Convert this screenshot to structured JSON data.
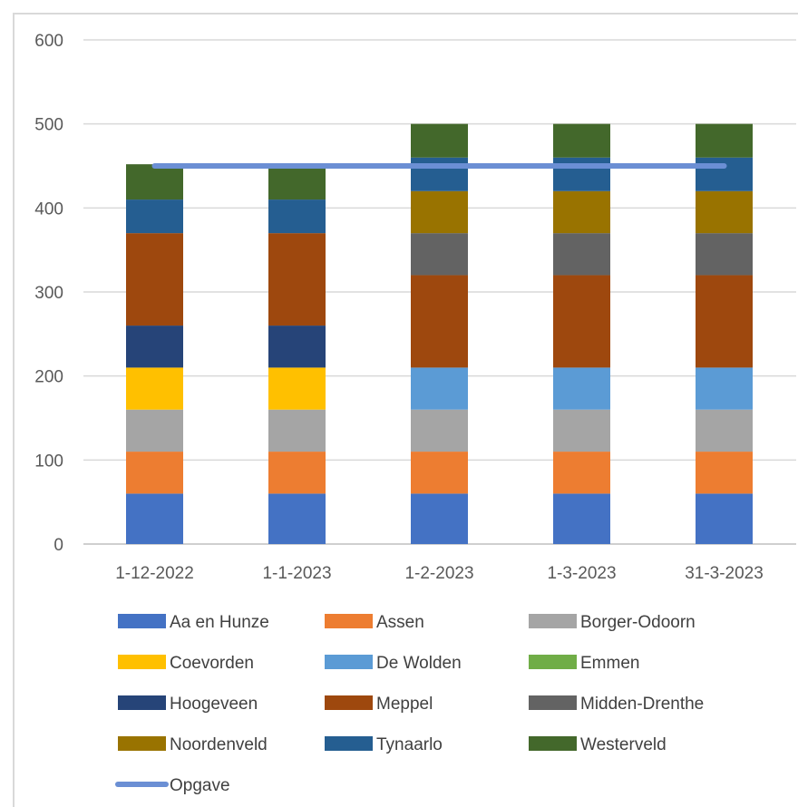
{
  "chart_data": {
    "type": "bar",
    "stacked": true,
    "title": "",
    "xlabel": "",
    "ylabel": "",
    "ylim": [
      0,
      600
    ],
    "yticks": [
      0,
      100,
      200,
      300,
      400,
      500,
      600
    ],
    "grid": true,
    "legend_position": "bottom",
    "categories": [
      "1-12-2022",
      "1-1-2023",
      "1-2-2023",
      "1-3-2023",
      "31-3-2023"
    ],
    "series": [
      {
        "name": "Aa en Hunze",
        "color": "#4472c4",
        "values": [
          60,
          60,
          60,
          60,
          60
        ]
      },
      {
        "name": "Assen",
        "color": "#ed7d31",
        "values": [
          50,
          50,
          50,
          50,
          50
        ]
      },
      {
        "name": "Borger-Odoorn",
        "color": "#a5a5a5",
        "values": [
          50,
          50,
          50,
          50,
          50
        ]
      },
      {
        "name": "Coevorden",
        "color": "#ffc000",
        "values": [
          50,
          50,
          0,
          0,
          0
        ]
      },
      {
        "name": "De Wolden",
        "color": "#5b9bd5",
        "values": [
          0,
          0,
          50,
          50,
          50
        ]
      },
      {
        "name": "Emmen",
        "color": "#70ad47",
        "values": [
          0,
          0,
          0,
          0,
          0
        ]
      },
      {
        "name": "Hoogeveen",
        "color": "#264478",
        "values": [
          50,
          50,
          0,
          0,
          0
        ]
      },
      {
        "name": "Meppel",
        "color": "#9e480e",
        "values": [
          110,
          110,
          110,
          110,
          110
        ]
      },
      {
        "name": "Midden-Drenthe",
        "color": "#636363",
        "values": [
          0,
          0,
          50,
          50,
          50
        ]
      },
      {
        "name": "Noordenveld",
        "color": "#997300",
        "values": [
          0,
          0,
          50,
          50,
          50
        ]
      },
      {
        "name": "Tynaarlo",
        "color": "#255e91",
        "values": [
          40,
          40,
          40,
          40,
          40
        ]
      },
      {
        "name": "Westerveld",
        "color": "#43682b",
        "values": [
          42,
          40,
          40,
          40,
          40
        ]
      }
    ],
    "line_series": {
      "name": "Opgave",
      "color": "#6b8fd4",
      "values": [
        450,
        450,
        450,
        450,
        450
      ]
    }
  }
}
